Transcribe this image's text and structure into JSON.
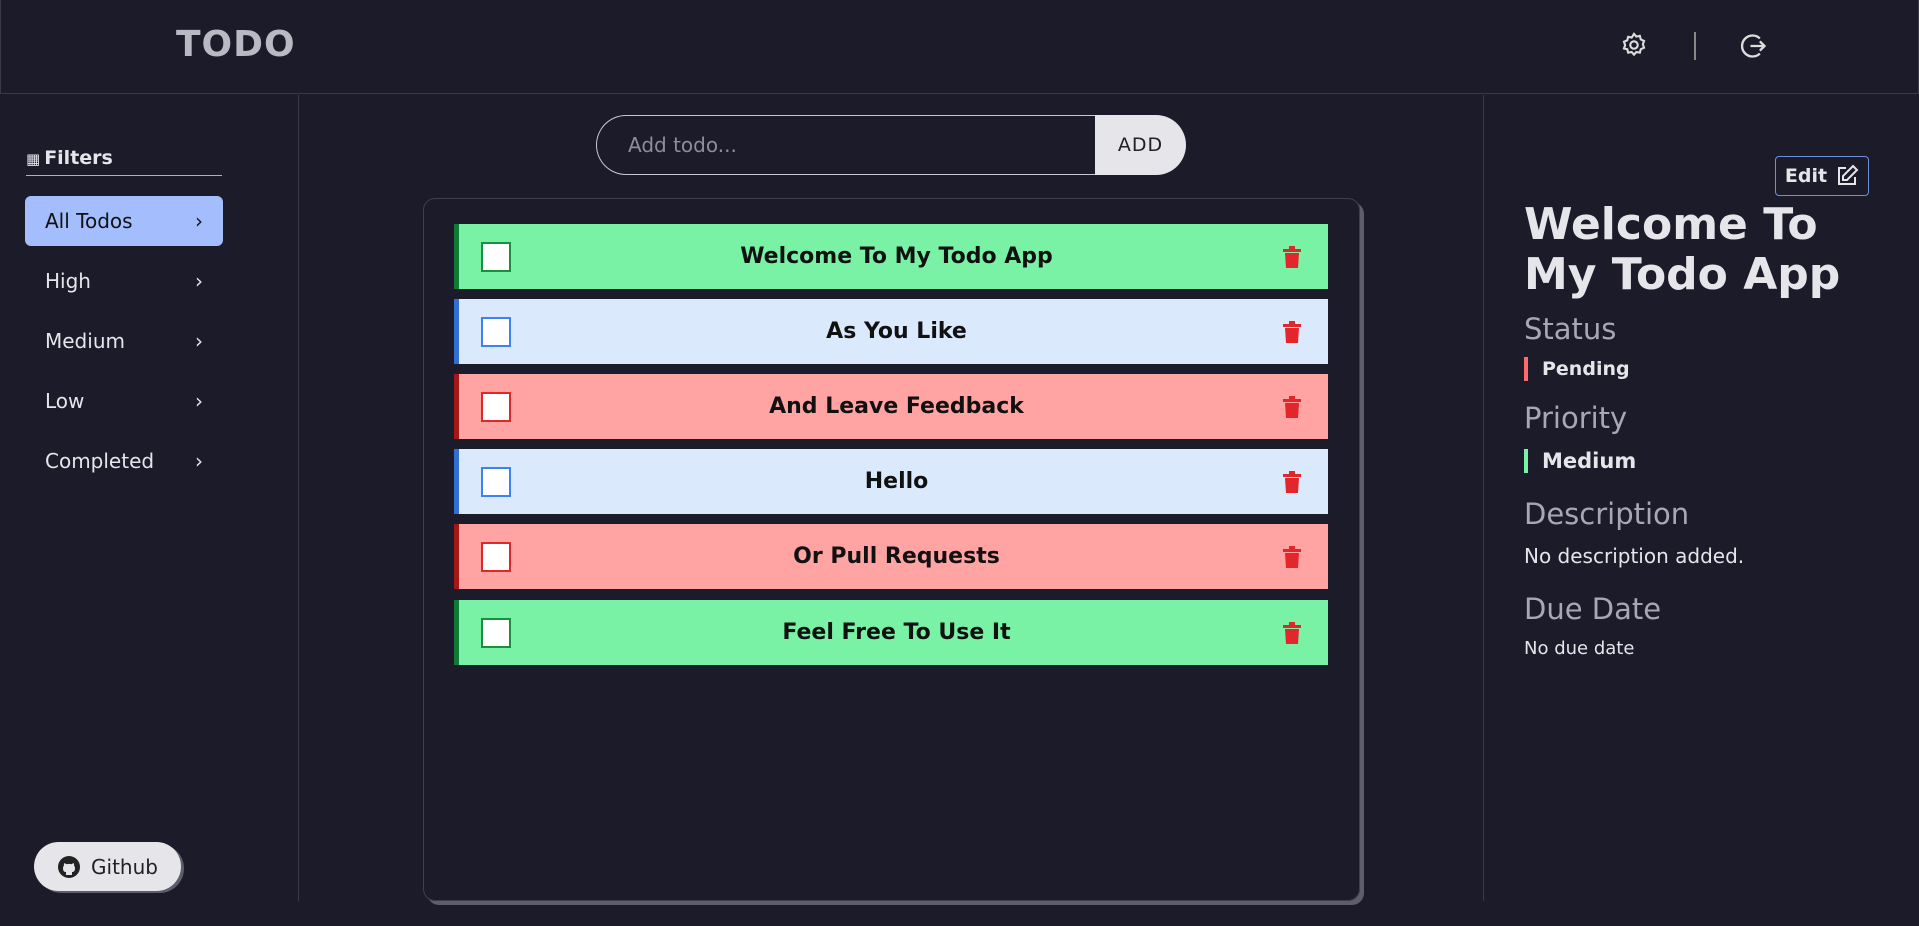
{
  "header": {
    "title": "TODO"
  },
  "sidebar": {
    "heading": "Filters",
    "filters": [
      "All Todos",
      "High",
      "Medium",
      "Low",
      "Completed"
    ],
    "github": "Github"
  },
  "composer": {
    "placeholder": "Add todo...",
    "button": "ADD"
  },
  "todos": [
    "Welcome To My Todo App",
    "As You Like",
    "And Leave Feedback",
    "Hello",
    "Or Pull Requests",
    "Feel Free To Use It"
  ],
  "details": {
    "edit": "Edit",
    "title": "Welcome To My Todo App",
    "status_label": "Status",
    "status": "Pending",
    "priority_label": "Priority",
    "priority": "Medium",
    "description_label": "Description",
    "description": "No description added.",
    "due_label": "Due Date",
    "due": "No due date"
  }
}
